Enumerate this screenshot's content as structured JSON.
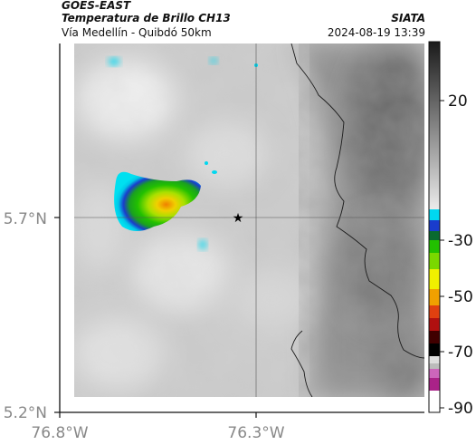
{
  "header": {
    "satellite": "GOES-EAST",
    "product": "Temperatura de Brillo CH13",
    "route": "Vía Medellín - Quibdó 50km",
    "agency": "SIATA",
    "datetime": "2024-08-19 13:39"
  },
  "map": {
    "lon_labels": [
      "76.8°W",
      "76.3°W"
    ],
    "lat_labels": [
      "5.7°N",
      "5.2°N"
    ],
    "marker": "star-marker",
    "gridlines": true
  },
  "colorbar": {
    "ticks": [
      "20",
      "-30",
      "-50",
      "-70",
      "-90"
    ],
    "colors": {
      "warm_top": "#1c1c1c",
      "warm_bottom": "#e8e8e8",
      "cyan": "#00d8f0",
      "blue": "#1a3ccc",
      "green": "#22c000",
      "yellow": "#f0f000",
      "orange": "#f08000",
      "red": "#cc1010",
      "black": "#000000",
      "magenta": "#cc44aa"
    }
  }
}
